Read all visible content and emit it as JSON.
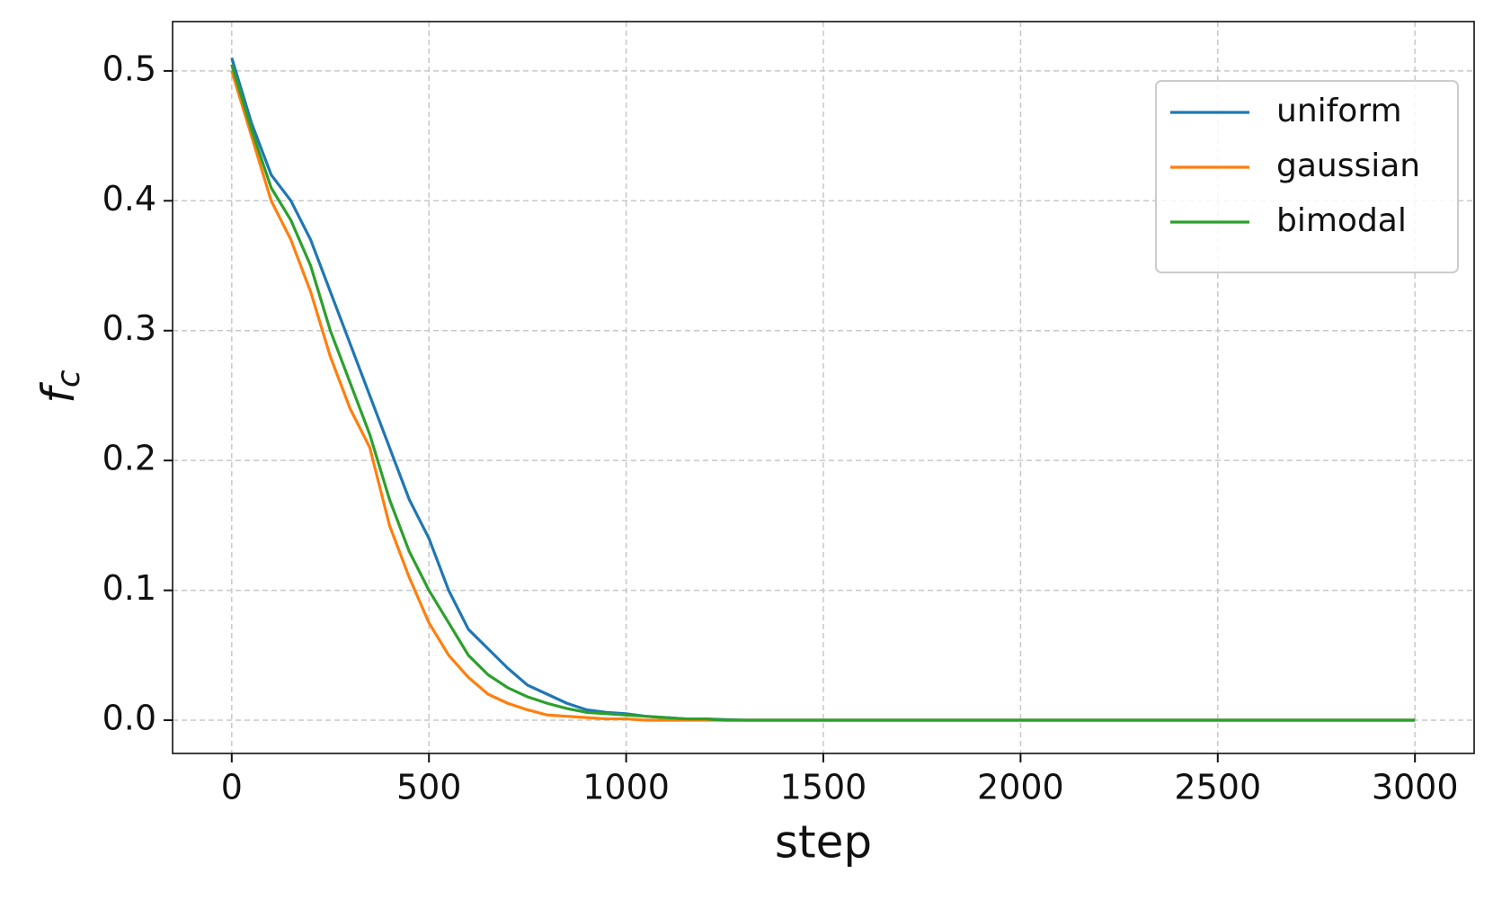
{
  "chart_data": {
    "type": "line",
    "x_label": "step",
    "y_label": "f",
    "y_label_subscript": "c",
    "x": [
      0,
      50,
      100,
      150,
      200,
      250,
      300,
      350,
      400,
      450,
      500,
      550,
      600,
      650,
      700,
      750,
      800,
      850,
      900,
      950,
      1000,
      1050,
      1100,
      1150,
      1200,
      1250,
      1300,
      1350,
      1400,
      1450,
      1500,
      3000
    ],
    "series": [
      {
        "name": "uniform",
        "color": "#1f77b4",
        "values": [
          0.51,
          0.46,
          0.42,
          0.4,
          0.37,
          0.33,
          0.29,
          0.25,
          0.21,
          0.17,
          0.14,
          0.1,
          0.07,
          0.055,
          0.04,
          0.027,
          0.02,
          0.013,
          0.008,
          0.006,
          0.005,
          0.003,
          0.002,
          0.001,
          0.001,
          0.0005,
          0,
          0,
          0,
          0,
          0,
          0
        ]
      },
      {
        "name": "gaussian",
        "color": "#ff7f0e",
        "values": [
          0.5,
          0.45,
          0.4,
          0.37,
          0.33,
          0.28,
          0.24,
          0.21,
          0.15,
          0.11,
          0.075,
          0.05,
          0.033,
          0.02,
          0.013,
          0.008,
          0.004,
          0.003,
          0.002,
          0.001,
          0.001,
          0,
          0,
          0,
          0,
          0,
          0,
          0,
          0,
          0,
          0,
          0
        ]
      },
      {
        "name": "bimodal",
        "color": "#2ca02c",
        "values": [
          0.505,
          0.455,
          0.41,
          0.385,
          0.35,
          0.3,
          0.26,
          0.22,
          0.17,
          0.13,
          0.1,
          0.075,
          0.05,
          0.035,
          0.025,
          0.018,
          0.013,
          0.009,
          0.006,
          0.005,
          0.004,
          0.003,
          0.002,
          0.001,
          0.001,
          0,
          0,
          0,
          0,
          0,
          0,
          0
        ]
      }
    ],
    "xlim": [
      -150,
      3150
    ],
    "ylim": [
      -0.0256,
      0.538
    ],
    "xticks": [
      0,
      500,
      1000,
      1500,
      2000,
      2500,
      3000
    ],
    "yticks": [
      {
        "value": 0,
        "label": "0.0"
      },
      0.1,
      0.2,
      0.3,
      0.4,
      0.5
    ],
    "grid": true,
    "legend": "upper right"
  }
}
